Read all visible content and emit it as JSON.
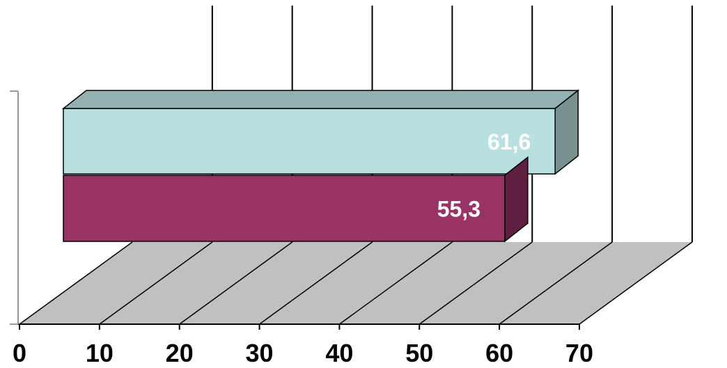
{
  "chart_data": {
    "type": "bar",
    "orientation": "horizontal",
    "three_d": true,
    "title": "",
    "xlabel": "",
    "ylabel": "",
    "xlim": [
      0,
      70
    ],
    "x_ticks": [
      "0",
      "10",
      "20",
      "30",
      "40",
      "50",
      "60",
      "70"
    ],
    "grid": true,
    "legend": "none",
    "bars": [
      {
        "value": 61.6,
        "label": "61,6",
        "color_front": "#b9e0e1",
        "color_top": "#93b1b2",
        "color_side": "#78908f"
      },
      {
        "value": 55.3,
        "label": "55,3",
        "color_front": "#993366",
        "color_top": "#7a2851",
        "color_side": "#5e1f40"
      }
    ],
    "floor_color": "#c0c0c0",
    "gridline_color": "#000000"
  }
}
